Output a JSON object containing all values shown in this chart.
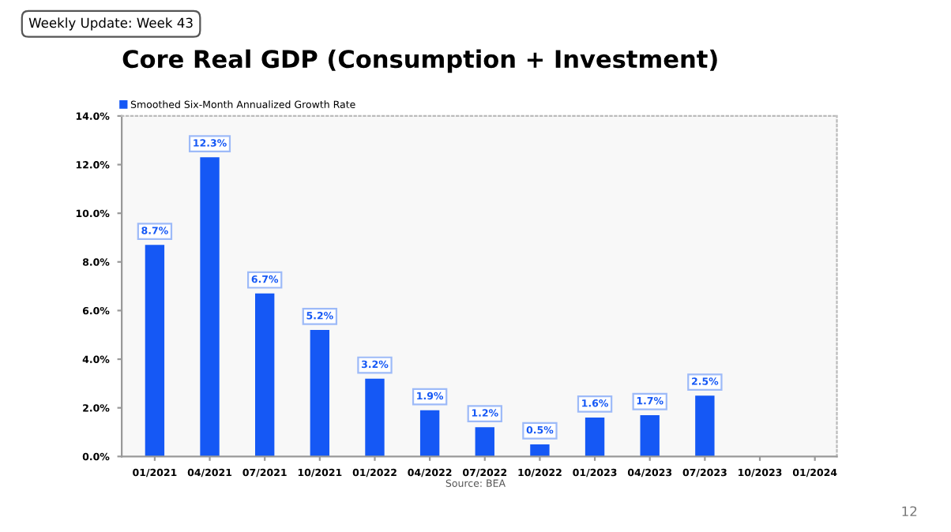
{
  "chart_data": {
    "type": "bar",
    "title": "Core Real GDP (Consumption + Investment)",
    "categories": [
      "01/2021",
      "04/2021",
      "07/2021",
      "10/2021",
      "01/2022",
      "04/2022",
      "07/2022",
      "10/2022",
      "01/2023",
      "04/2023",
      "07/2023",
      "10/2023",
      "01/2024"
    ],
    "series": [
      {
        "name": "Smoothed Six-Month Annualized Growth Rate",
        "color": "#1558f5",
        "values": [
          8.7,
          12.3,
          6.7,
          5.2,
          3.2,
          1.9,
          1.2,
          0.5,
          1.6,
          1.7,
          2.5,
          null,
          null
        ],
        "value_labels": [
          "8.7%",
          "12.3%",
          "6.7%",
          "5.2%",
          "3.2%",
          "1.9%",
          "1.2%",
          "0.5%",
          "1.6%",
          "1.7%",
          "2.5%",
          null,
          null
        ]
      }
    ],
    "ylim": [
      0,
      14
    ],
    "yticks": [
      {
        "value": 0,
        "label": "0.0%"
      },
      {
        "value": 2,
        "label": "2.0%"
      },
      {
        "value": 4,
        "label": "4.0%"
      },
      {
        "value": 6,
        "label": "6.0%"
      },
      {
        "value": 8,
        "label": "8.0%"
      },
      {
        "value": 10,
        "label": "10.0%"
      },
      {
        "value": 12,
        "label": "12.0%"
      },
      {
        "value": 14,
        "label": "14.0%"
      }
    ],
    "legend": "top left",
    "annotations": [
      "Weekly Update: Week 43",
      "Source: BEA",
      "12"
    ]
  }
}
